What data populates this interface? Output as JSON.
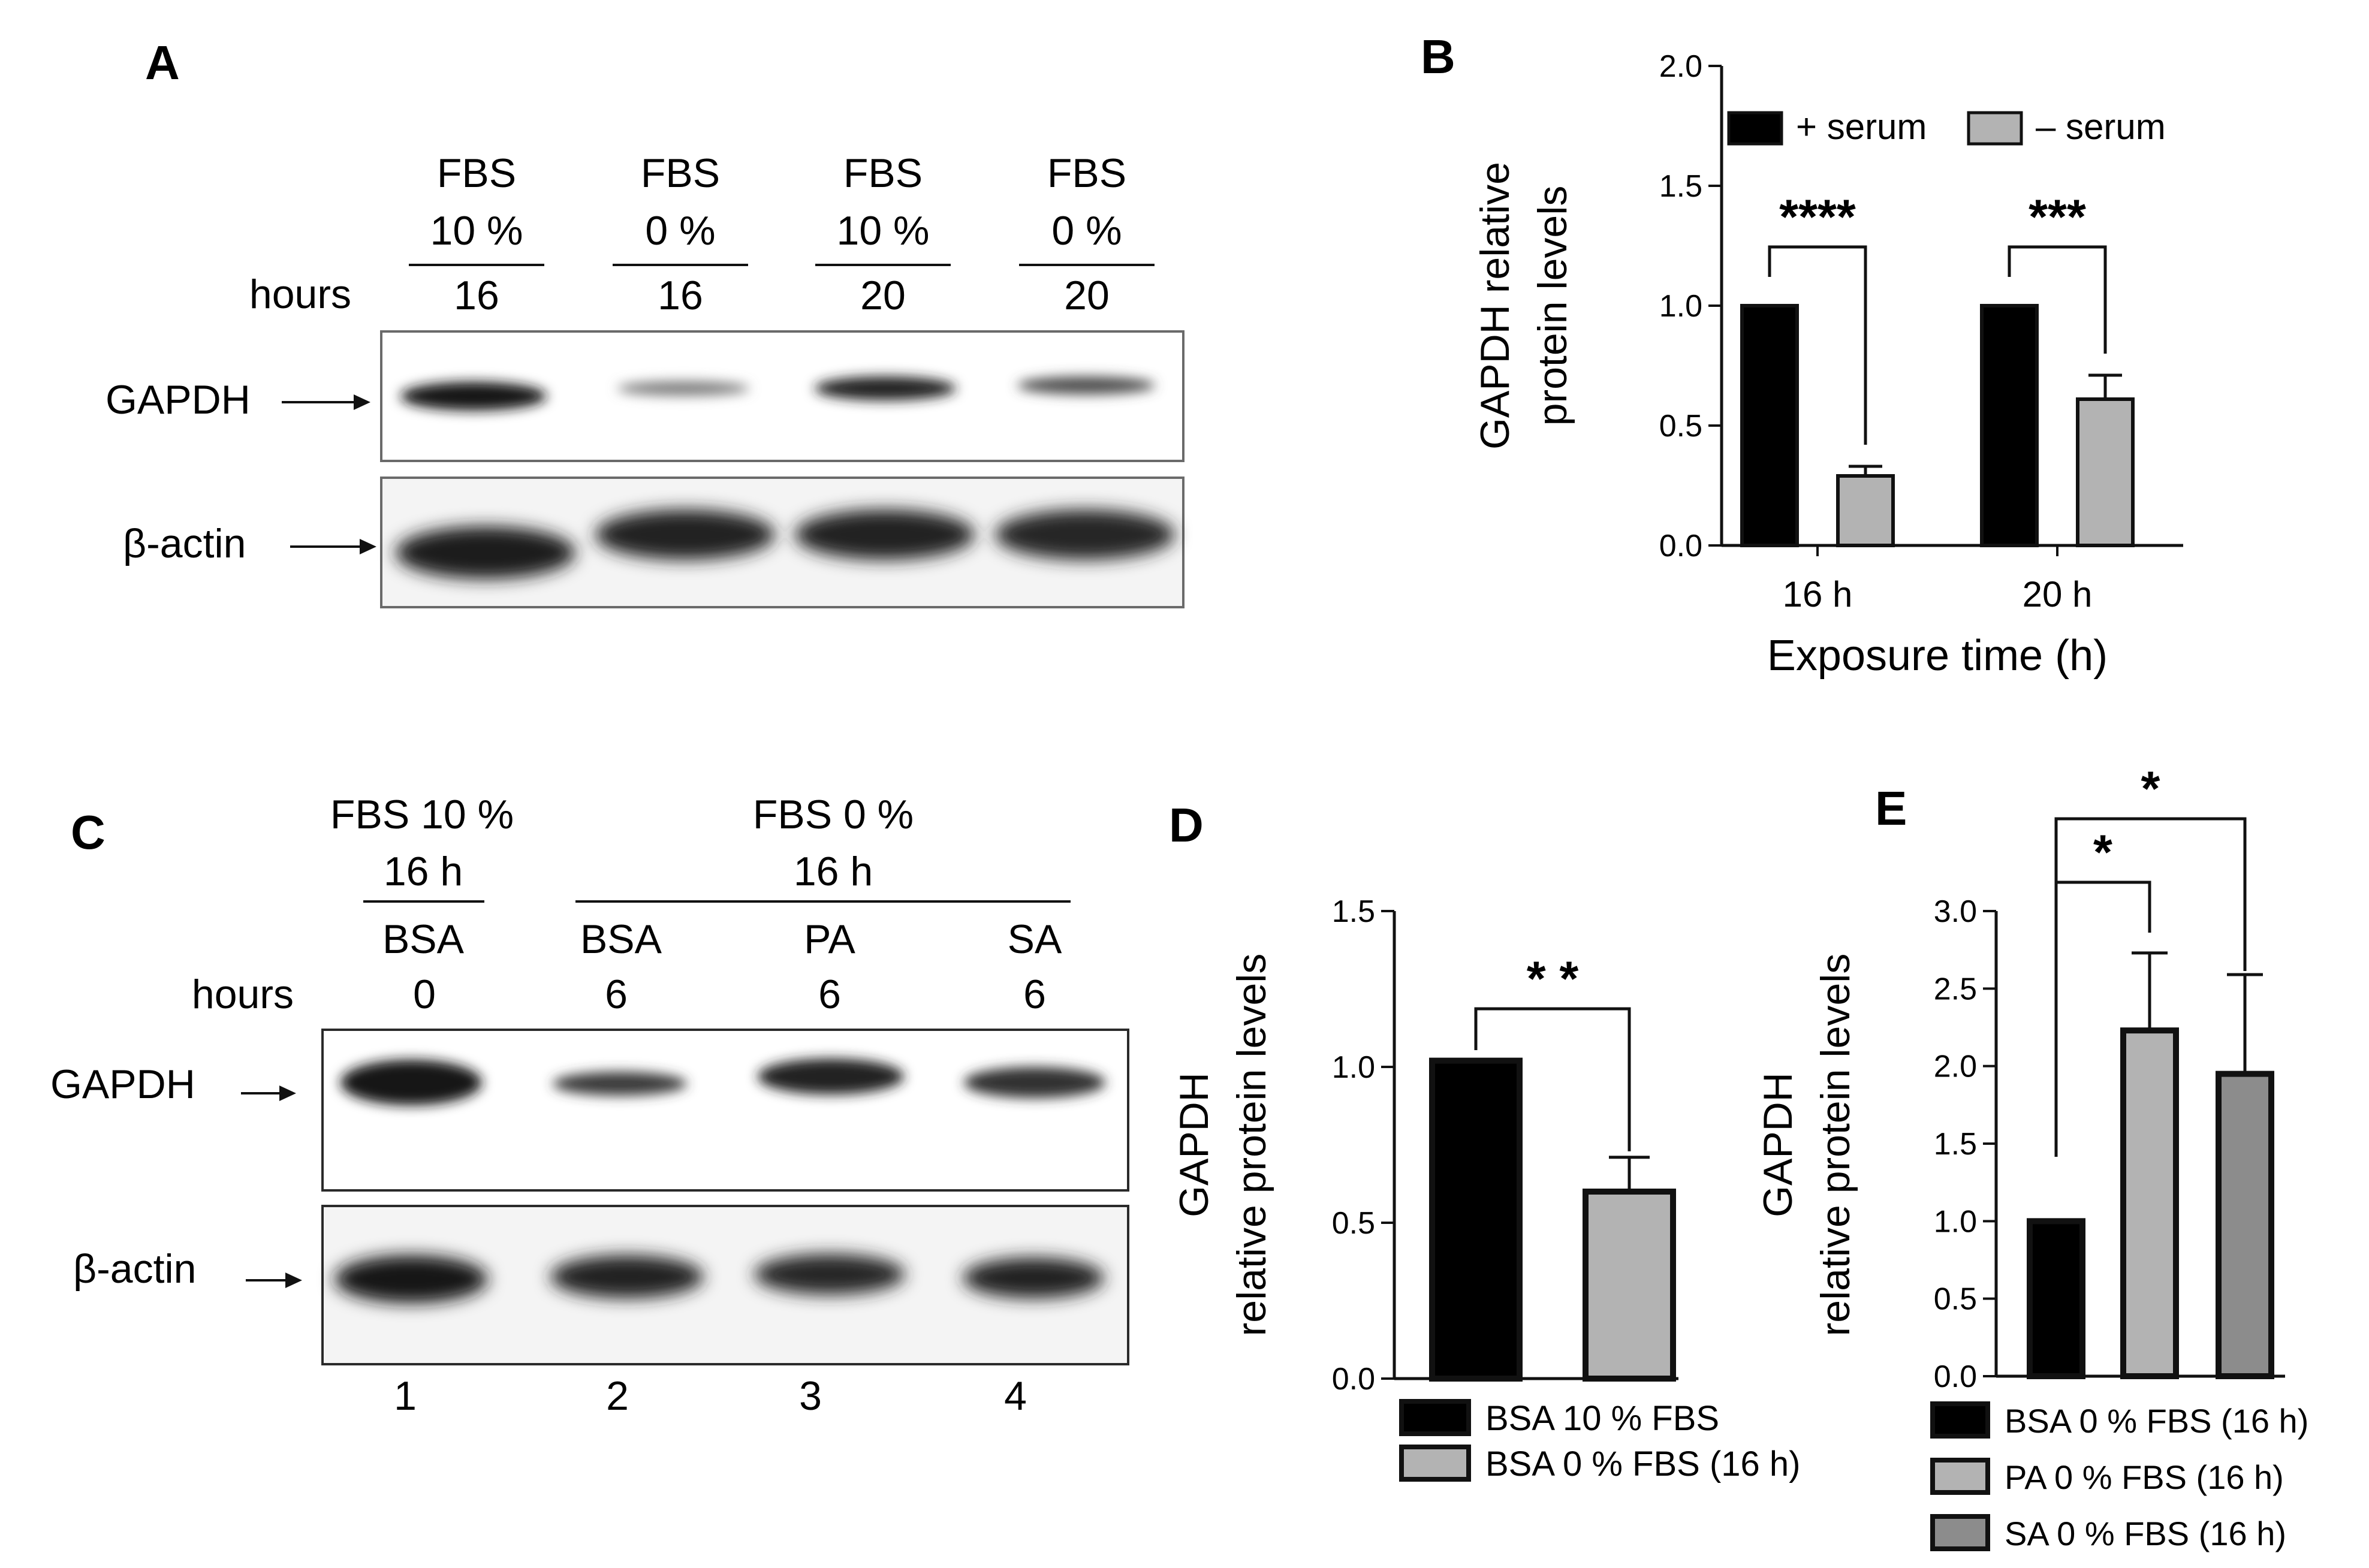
{
  "panels": {
    "A": {
      "letter": "A",
      "lanes": [
        {
          "fbs_label": "FBS",
          "fbs_value": "10 %",
          "hours": "16"
        },
        {
          "fbs_label": "FBS",
          "fbs_value": "0 %",
          "hours": "16"
        },
        {
          "fbs_label": "FBS",
          "fbs_value": "10 %",
          "hours": "20"
        },
        {
          "fbs_label": "FBS",
          "fbs_value": "0 %",
          "hours": "20"
        }
      ],
      "hours_label": "hours",
      "rows": [
        {
          "label": "GAPDH",
          "arrow": "→"
        },
        {
          "label": "β-actin",
          "arrow": "→"
        }
      ]
    },
    "B": {
      "letter": "B"
    },
    "C": {
      "letter": "C",
      "group1": {
        "title": "FBS 10 %",
        "time": "16 h"
      },
      "group2": {
        "title": "FBS 0 %",
        "time": "16 h"
      },
      "hours_label": "hours",
      "lanes": [
        {
          "treatment": "BSA",
          "hours": "0",
          "number": "1"
        },
        {
          "treatment": "BSA",
          "hours": "6",
          "number": "2"
        },
        {
          "treatment": "PA",
          "hours": "6",
          "number": "3"
        },
        {
          "treatment": "SA",
          "hours": "6",
          "number": "4"
        }
      ],
      "rows": [
        {
          "label": "GAPDH",
          "arrow": "→"
        },
        {
          "label": "β-actin",
          "arrow": "→"
        }
      ]
    },
    "D": {
      "letter": "D"
    },
    "E": {
      "letter": "E"
    }
  },
  "chart_data": [
    {
      "panel": "B",
      "type": "bar",
      "categories": [
        "16 h",
        "20 h"
      ],
      "series": [
        {
          "name": "+ serum",
          "values": [
            1.0,
            1.0
          ],
          "errors": [
            0,
            0
          ],
          "color": "#000000"
        },
        {
          "name": "– serum",
          "values": [
            0.29,
            0.61
          ],
          "errors": [
            0.04,
            0.1
          ],
          "color": "#b3b3b3"
        }
      ],
      "significance": [
        "****",
        "***"
      ],
      "xlabel": "Exposure time (h)",
      "ylabel_lines": [
        "GAPDH relative",
        "protein levels"
      ],
      "ylim": [
        0,
        2.0
      ],
      "yticks": [
        "0.0",
        "0.5",
        "1.0",
        "1.5",
        "2.0"
      ],
      "legend_position": "top"
    },
    {
      "panel": "D",
      "type": "bar",
      "categories": [
        "BSA 10 % FBS",
        "BSA 0 % FBS (16 h)"
      ],
      "values": [
        1.02,
        0.6
      ],
      "errors": [
        0,
        0.11
      ],
      "colors": [
        "#000000",
        "#b3b3b3"
      ],
      "significance": [
        "* *"
      ],
      "ylabel_lines": [
        "GAPDH",
        "relative protein levels"
      ],
      "ylim": [
        0,
        1.5
      ],
      "yticks": [
        "0.0",
        "0.5",
        "1.0",
        "1.5"
      ],
      "legend_position": "bottom"
    },
    {
      "panel": "E",
      "type": "bar",
      "categories": [
        "BSA 0 % FBS (16 h)",
        "PA 0 % FBS (16 h)",
        "SA 0 % FBS (16 h)"
      ],
      "values": [
        1.0,
        2.23,
        1.95
      ],
      "errors": [
        0,
        0.5,
        0.64
      ],
      "colors": [
        "#000000",
        "#b3b3b3",
        "#8c8c8c"
      ],
      "significance": [
        "*",
        "*"
      ],
      "ylabel_lines": [
        "GAPDH",
        "relative protein levels"
      ],
      "ylim": [
        0,
        3.0
      ],
      "yticks": [
        "0.0",
        "0.5",
        "1.0",
        "1.5",
        "2.0",
        "2.5",
        "3.0"
      ],
      "legend_position": "bottom"
    }
  ]
}
